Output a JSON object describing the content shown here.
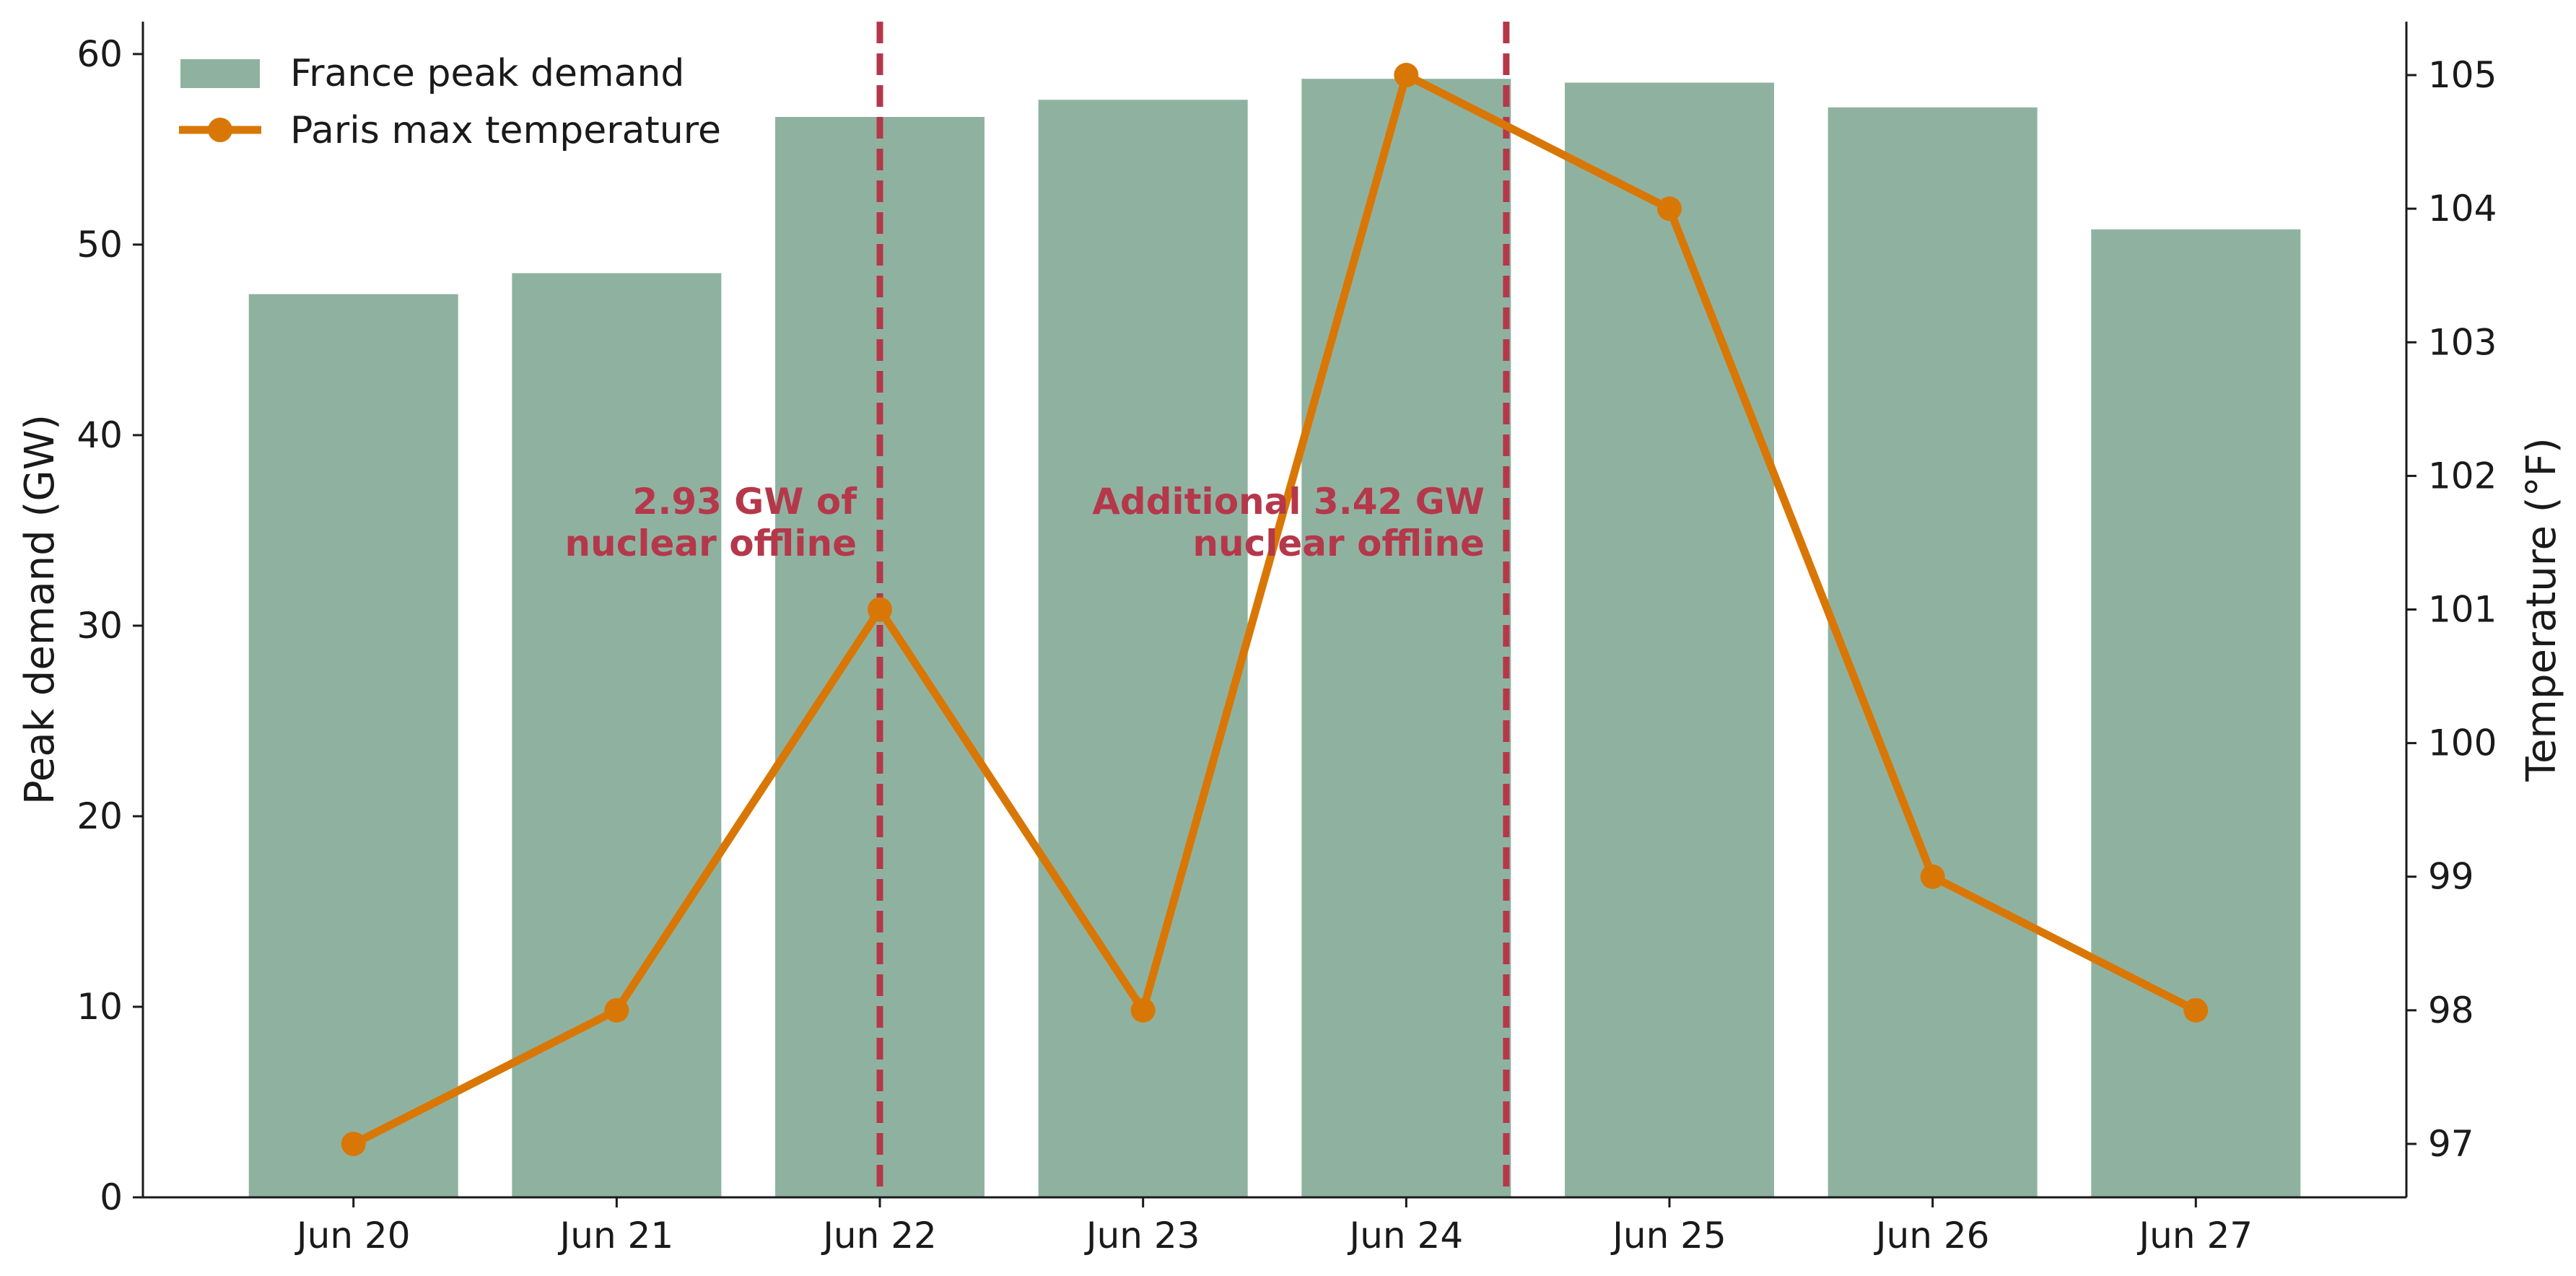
{
  "chart_data": {
    "type": "bar",
    "categories": [
      "Jun 20",
      "Jun 21",
      "Jun 22",
      "Jun 23",
      "Jun 24",
      "Jun 25",
      "Jun 26",
      "Jun 27"
    ],
    "series": [
      {
        "name": "France peak demand",
        "type": "bar",
        "axis": "left",
        "values": [
          47.4,
          48.5,
          56.7,
          57.6,
          58.7,
          58.5,
          57.2,
          50.8
        ],
        "color": "#8fb2a0"
      },
      {
        "name": "Paris max temperature",
        "type": "line",
        "axis": "right",
        "values": [
          97,
          98,
          101,
          98,
          105,
          104,
          99,
          98
        ],
        "color": "#d97706"
      }
    ],
    "ylabel": "Peak demand (GW)",
    "ylabel_right": "Temperature (°F)",
    "xlabel": "",
    "title": "",
    "ylim": [
      0,
      61.7
    ],
    "ylim_right": [
      96.6,
      105.4
    ],
    "yticks": [
      0,
      10,
      20,
      30,
      40,
      50,
      60
    ],
    "yticks_right": [
      97,
      98,
      99,
      100,
      101,
      102,
      103,
      104,
      105
    ],
    "legend_placement": "top-left",
    "grid": false,
    "vlines": [
      {
        "x_position": 2.0,
        "label_lines": [
          "2.93 GW of",
          "nuclear offline"
        ],
        "color": "#b5384a"
      },
      {
        "x_position": 4.38,
        "label_lines": [
          "Additional 3.42 GW",
          "nuclear offline"
        ],
        "color": "#b5384a"
      }
    ]
  }
}
